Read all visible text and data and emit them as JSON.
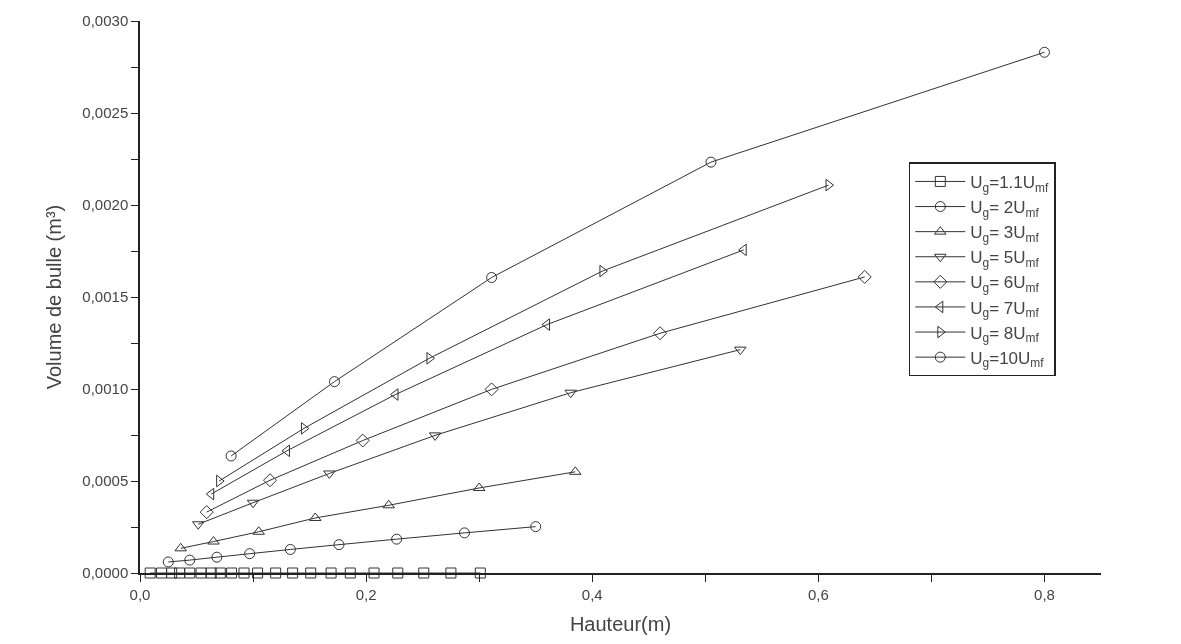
{
  "chart_data": {
    "type": "line",
    "xlabel": "Hauteur(m)",
    "ylabel": "Volume de bulle (m³)",
    "xlim": [
      0,
      0.85
    ],
    "ylim": [
      0,
      0.003
    ],
    "xticks": [
      {
        "value": 0,
        "label": "0,0"
      },
      {
        "value": 0.1,
        "label": null
      },
      {
        "value": 0.2,
        "label": "0,2"
      },
      {
        "value": 0.3,
        "label": null
      },
      {
        "value": 0.4,
        "label": "0,4"
      },
      {
        "value": 0.5,
        "label": null
      },
      {
        "value": 0.6,
        "label": "0,6"
      },
      {
        "value": 0.7,
        "label": null
      },
      {
        "value": 0.8,
        "label": "0,8"
      }
    ],
    "yticks": [
      {
        "value": 0,
        "label": "0,0000"
      },
      {
        "value": 0.00025,
        "label": null
      },
      {
        "value": 0.0005,
        "label": "0,0005"
      },
      {
        "value": 0.00075,
        "label": null
      },
      {
        "value": 0.001,
        "label": "0,0010"
      },
      {
        "value": 0.00125,
        "label": null
      },
      {
        "value": 0.0015,
        "label": "0,0015"
      },
      {
        "value": 0.00175,
        "label": null
      },
      {
        "value": 0.002,
        "label": "0,0020"
      },
      {
        "value": 0.00225,
        "label": null
      },
      {
        "value": 0.0025,
        "label": "0,0025"
      },
      {
        "value": 0.00275,
        "label": null
      },
      {
        "value": 0.003,
        "label": "0,0030"
      }
    ],
    "legend": "right",
    "line_style": "solid",
    "series": [
      {
        "name": "U$_{g}$=1.1U$_{mf}$",
        "color": "#333333",
        "marker": "square",
        "x": [
          0.009,
          0.019,
          0.028,
          0.035,
          0.044,
          0.054,
          0.063,
          0.071,
          0.081,
          0.092,
          0.104,
          0.12,
          0.135,
          0.151,
          0.169,
          0.186,
          0.207,
          0.228,
          0.251,
          0.275,
          0.301
        ],
        "values": [
          0,
          0,
          0,
          0,
          0,
          0,
          0,
          0,
          0,
          0,
          0,
          0,
          0,
          0,
          0,
          0,
          0,
          0,
          0,
          0,
          0
        ]
      },
      {
        "name": "U$_{g}$= 2U$_{mf}$",
        "color": "#333333",
        "marker": "circle",
        "x": [
          0.025,
          0.044,
          0.068,
          0.097,
          0.133,
          0.176,
          0.227,
          0.287,
          0.35
        ],
        "values": [
          6e-05,
          7e-05,
          8.6e-05,
          0.000105,
          0.000128,
          0.000154,
          0.000184,
          0.000218,
          0.000252
        ]
      },
      {
        "name": "U$_{g}$= 3U$_{mf}$",
        "color": "#333333",
        "marker": "triangle",
        "x": [
          0.036,
          0.065,
          0.105,
          0.155,
          0.22,
          0.3,
          0.385
        ],
        "values": [
          0.000134,
          0.000171,
          0.000224,
          0.000299,
          0.000368,
          0.000462,
          0.00055
        ]
      },
      {
        "name": "U$_{g}$= 5U$_{mf}$",
        "color": "#333333",
        "marker": "triangle-down",
        "x": [
          0.0515,
          0.1,
          0.1675,
          0.261,
          0.381,
          0.531
        ],
        "values": [
          0.000265,
          0.000382,
          0.000541,
          0.000748,
          0.00098,
          0.001214
        ]
      },
      {
        "name": "U$_{g}$= 6U$_{mf}$",
        "color": "#333333",
        "marker": "diamond",
        "x": [
          0.059,
          0.115,
          0.197,
          0.311,
          0.46,
          0.641
        ],
        "values": [
          0.000331,
          0.000504,
          0.00072,
          0.000998,
          0.001303,
          0.001609
        ]
      },
      {
        "name": "U$_{g}$= 7U$_{mf}$",
        "color": "#333333",
        "marker": "triangle-left",
        "x": [
          0.063,
          0.13,
          0.226,
          0.36,
          0.534
        ],
        "values": [
          0.000429,
          0.000664,
          0.00097,
          0.00135,
          0.001756
        ]
      },
      {
        "name": "U$_{g}$= 8U$_{mf}$",
        "color": "#333333",
        "marker": "triangle-right",
        "x": [
          0.07,
          0.145,
          0.256,
          0.409,
          0.609
        ],
        "values": [
          0.0005,
          0.000786,
          0.001167,
          0.001641,
          0.002108
        ]
      },
      {
        "name": "U$_{g}$=10U$_{mf}$",
        "color": "#333333",
        "marker": "circle",
        "x": [
          0.0806,
          0.172,
          0.311,
          0.505,
          0.8
        ],
        "values": [
          0.000636,
          0.00104,
          0.001606,
          0.002233,
          0.00283
        ]
      }
    ]
  }
}
